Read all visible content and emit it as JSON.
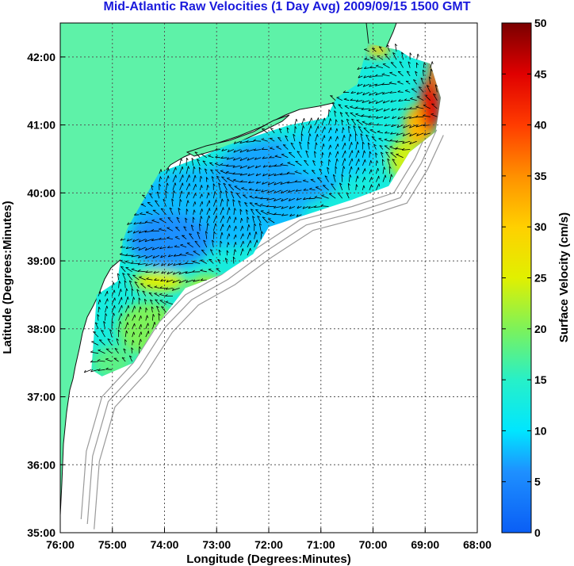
{
  "title": "Mid-Atlantic Raw Velocities (1 Day Avg) 2009/09/15 1500 GMT",
  "colors": {
    "title": "#1a1adc",
    "land": "#5ef2a8",
    "coast": "#111111",
    "bathy": "#9a9a9a",
    "grid": "#555555"
  },
  "axes": {
    "xlabel": "Longitude (Degrees:Minutes)",
    "ylabel": "Latitude (Degrees:Minutes)",
    "x_ticks": [
      {
        "value": -76,
        "label": "76:00"
      },
      {
        "value": -75,
        "label": "75:00"
      },
      {
        "value": -74,
        "label": "74:00"
      },
      {
        "value": -73,
        "label": "73:00"
      },
      {
        "value": -72,
        "label": "72:00"
      },
      {
        "value": -71,
        "label": "71:00"
      },
      {
        "value": -70,
        "label": "70:00"
      },
      {
        "value": -69,
        "label": "69:00"
      },
      {
        "value": -68,
        "label": "68:00"
      }
    ],
    "y_ticks": [
      {
        "value": 35,
        "label": "35:00"
      },
      {
        "value": 36,
        "label": "36:00"
      },
      {
        "value": 37,
        "label": "37:00"
      },
      {
        "value": 38,
        "label": "38:00"
      },
      {
        "value": 39,
        "label": "39:00"
      },
      {
        "value": 40,
        "label": "40:00"
      },
      {
        "value": 41,
        "label": "41:00"
      },
      {
        "value": 42,
        "label": "42:00"
      }
    ],
    "xlim": [
      -76,
      -68
    ],
    "ylim": [
      35,
      42.5
    ],
    "grid": "dotted"
  },
  "colorbar": {
    "label": "Surface Velocity (cm/s)",
    "min": 0,
    "max": 50,
    "ticks": [
      {
        "value": 0,
        "label": "0"
      },
      {
        "value": 5,
        "label": "5"
      },
      {
        "value": 10,
        "label": "10"
      },
      {
        "value": 15,
        "label": "15"
      },
      {
        "value": 20,
        "label": "20"
      },
      {
        "value": 25,
        "label": "25"
      },
      {
        "value": 30,
        "label": "30"
      },
      {
        "value": 35,
        "label": "35"
      },
      {
        "value": 40,
        "label": "40"
      },
      {
        "value": 45,
        "label": "45"
      },
      {
        "value": 50,
        "label": "50"
      }
    ]
  },
  "map_data": {
    "coverage_region": [
      [
        -75.4,
        37.4
      ],
      [
        -75.3,
        38.5
      ],
      [
        -74.9,
        38.7
      ],
      [
        -74.8,
        39.3
      ],
      [
        -74.7,
        39.5
      ],
      [
        -74.1,
        40.3
      ],
      [
        -73.4,
        40.5
      ],
      [
        -72.8,
        40.7
      ],
      [
        -71.6,
        41.0
      ],
      [
        -70.9,
        41.1
      ],
      [
        -70.7,
        41.4
      ],
      [
        -70.3,
        41.6
      ],
      [
        -70.1,
        42.2
      ],
      [
        -69.5,
        42.1
      ],
      [
        -69.3,
        42.0
      ],
      [
        -68.9,
        41.9
      ],
      [
        -68.7,
        41.4
      ],
      [
        -68.8,
        40.9
      ],
      [
        -69.3,
        40.6
      ],
      [
        -69.7,
        40.1
      ],
      [
        -70.4,
        39.9
      ],
      [
        -71.2,
        39.7
      ],
      [
        -72.0,
        39.5
      ],
      [
        -72.3,
        39.1
      ],
      [
        -72.9,
        38.8
      ],
      [
        -73.6,
        38.6
      ],
      [
        -74.2,
        38.0
      ],
      [
        -74.6,
        37.5
      ],
      [
        -75.2,
        37.3
      ]
    ],
    "speed_zones": [
      {
        "lon": -73.0,
        "lat": 39.8,
        "rx": 1.7,
        "ry": 0.6,
        "speed": 8
      },
      {
        "lon": -71.8,
        "lat": 40.3,
        "rx": 1.2,
        "ry": 0.5,
        "speed": 7
      },
      {
        "lon": -70.8,
        "lat": 40.6,
        "rx": 0.9,
        "ry": 0.4,
        "speed": 9
      },
      {
        "lon": -73.9,
        "lat": 39.3,
        "rx": 0.8,
        "ry": 0.4,
        "speed": 6
      },
      {
        "lon": -74.1,
        "lat": 38.7,
        "rx": 0.5,
        "ry": 0.15,
        "speed": 25
      },
      {
        "lon": -73.2,
        "lat": 38.6,
        "rx": 0.35,
        "ry": 0.2,
        "speed": 22
      },
      {
        "lon": -74.3,
        "lat": 38.0,
        "rx": 0.6,
        "ry": 0.4,
        "speed": 20
      },
      {
        "lon": -75.0,
        "lat": 37.5,
        "rx": 0.4,
        "ry": 0.25,
        "speed": 18
      },
      {
        "lon": -69.4,
        "lat": 40.5,
        "rx": 0.3,
        "ry": 0.3,
        "speed": 24
      },
      {
        "lon": -69.1,
        "lat": 41.0,
        "rx": 0.3,
        "ry": 0.3,
        "speed": 32
      },
      {
        "lon": -68.9,
        "lat": 41.3,
        "rx": 0.2,
        "ry": 0.4,
        "speed": 44
      },
      {
        "lon": -68.8,
        "lat": 41.8,
        "rx": 0.12,
        "ry": 0.3,
        "speed": 38
      },
      {
        "lon": -69.9,
        "lat": 42.1,
        "rx": 0.25,
        "ry": 0.1,
        "speed": 30
      }
    ]
  }
}
